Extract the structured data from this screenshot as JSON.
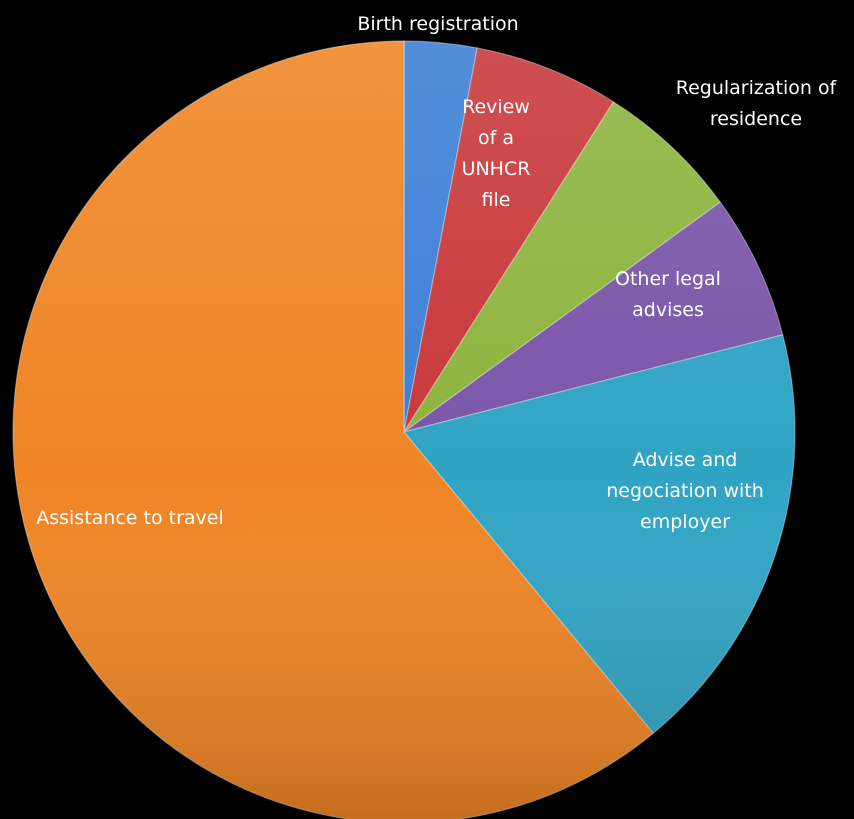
{
  "chart_data": {
    "type": "pie",
    "slices": [
      {
        "label": "Birth registration",
        "value": 3,
        "color": "#3d7fd6"
      },
      {
        "label": "Review of a UNHCR file",
        "value": 6,
        "color": "#c8383a"
      },
      {
        "label": "Regularization of residence",
        "value": 6,
        "color": "#8db43e"
      },
      {
        "label": "Other legal advises",
        "value": 6,
        "color": "#7a56a8"
      },
      {
        "label": "Advise and negociation with employer",
        "value": 18,
        "color": "#30a4c4"
      },
      {
        "label": "Assistance to travel",
        "value": 61,
        "color": "#ef8525"
      }
    ],
    "label_lines": [
      [
        "Birth registration"
      ],
      [
        "Review",
        "of a",
        "UNHCR",
        "file"
      ],
      [
        "Regularization of",
        "residence"
      ],
      [
        "Other legal",
        "advises"
      ],
      [
        "Advise and",
        "negociation with",
        "employer"
      ],
      [
        "Assistance to travel"
      ]
    ]
  }
}
